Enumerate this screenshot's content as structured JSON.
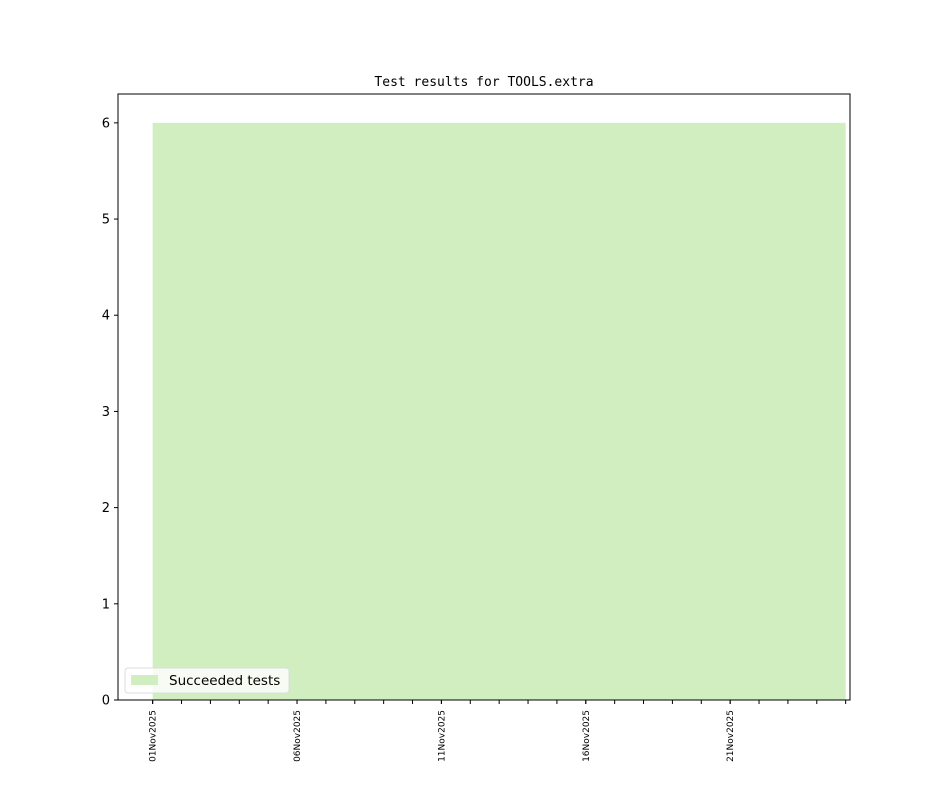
{
  "chart_data": {
    "type": "area",
    "title": "Test results for TOOLS.extra",
    "xlabel": "",
    "ylabel": "",
    "x_start": "2025-11-01",
    "x_end": "2025-11-25",
    "xlim": [
      "2025-10-30T19:12",
      "2025-11-25T03:36"
    ],
    "ylim": [
      0,
      6.3
    ],
    "yticks": [
      0,
      1,
      2,
      3,
      4,
      5,
      6
    ],
    "xtick_labels": [
      "01Nov2025",
      "06Nov2025",
      "11Nov2025",
      "16Nov2025",
      "21Nov2025"
    ],
    "xtick_dates": [
      "2025-11-01",
      "2025-11-06",
      "2025-11-11",
      "2025-11-16",
      "2025-11-21"
    ],
    "minor_ticks": "daily",
    "grid": false,
    "legend_placement": "lower-left",
    "series": [
      {
        "name": "Succeeded tests",
        "color": "#d0eec0",
        "x": [
          "2025-11-01",
          "2025-11-25"
        ],
        "values": [
          6,
          6
        ]
      }
    ]
  }
}
